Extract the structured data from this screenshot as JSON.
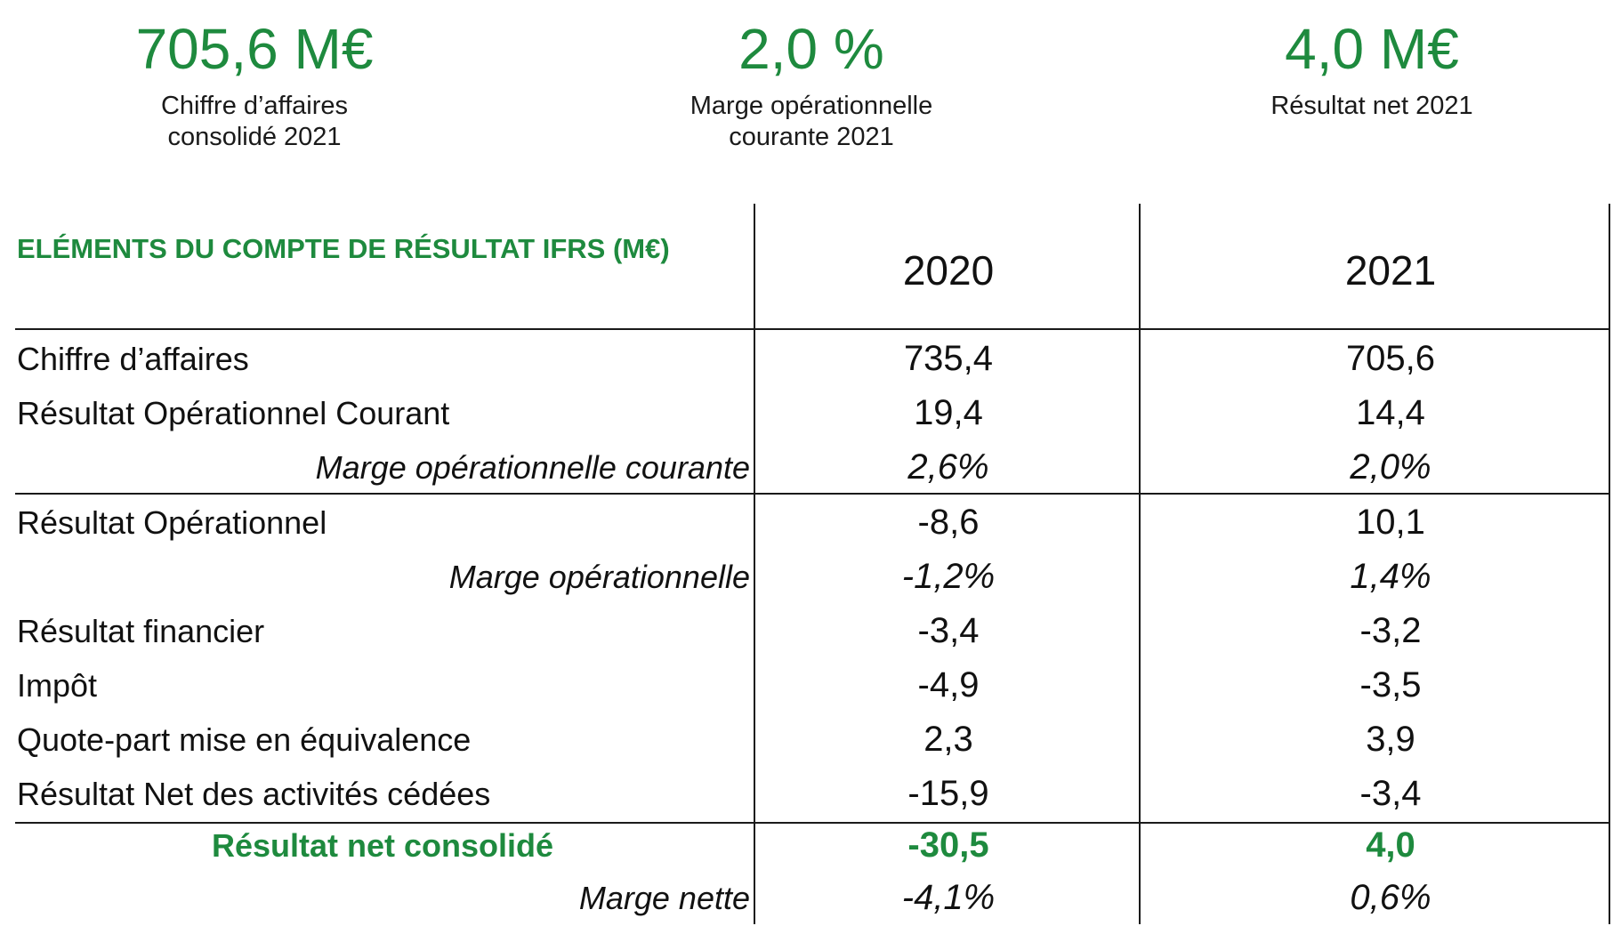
{
  "kpis": [
    {
      "value": "705,6 M€",
      "label": "Chiffre d’affaires consolidé 2021"
    },
    {
      "value": "2,0 %",
      "label": "Marge opérationnelle courante 2021"
    },
    {
      "value": "4,0 M€",
      "label": "Résultat net 2021"
    }
  ],
  "table": {
    "header_label": "ELÉMENTS DU COMPTE DE RÉSULTAT IFRS (M€)",
    "years": [
      "2020",
      "2021"
    ],
    "rows": [
      {
        "label": "Chiffre d’affaires",
        "v2020": "735,4",
        "v2021": "705,6"
      },
      {
        "label": "Résultat Opérationnel Courant",
        "v2020": "19,4",
        "v2021": "14,4"
      },
      {
        "label": "Marge opérationnelle courante",
        "v2020": "2,6%",
        "v2021": "2,0%"
      },
      {
        "label": "Résultat Opérationnel",
        "v2020": "-8,6",
        "v2021": "10,1"
      },
      {
        "label": "Marge opérationnelle",
        "v2020": "-1,2%",
        "v2021": "1,4%"
      },
      {
        "label": "Résultat financier",
        "v2020": "-3,4",
        "v2021": "-3,2"
      },
      {
        "label": "Impôt",
        "v2020": "-4,9",
        "v2021": "-3,5"
      },
      {
        "label": "Quote-part mise en équivalence",
        "v2020": "2,3",
        "v2021": "3,9"
      },
      {
        "label": "Résultat Net des activités cédées",
        "v2020": "-15,9",
        "v2021": "-3,4"
      },
      {
        "label": "Résultat net consolidé",
        "v2020": "-30,5",
        "v2021": "4,0"
      },
      {
        "label": "Marge nette",
        "v2020": "-4,1%",
        "v2021": "0,6%"
      }
    ]
  },
  "colors": {
    "accent": "#1e8a3e",
    "text": "#111111",
    "rule": "#1a1a1a"
  }
}
